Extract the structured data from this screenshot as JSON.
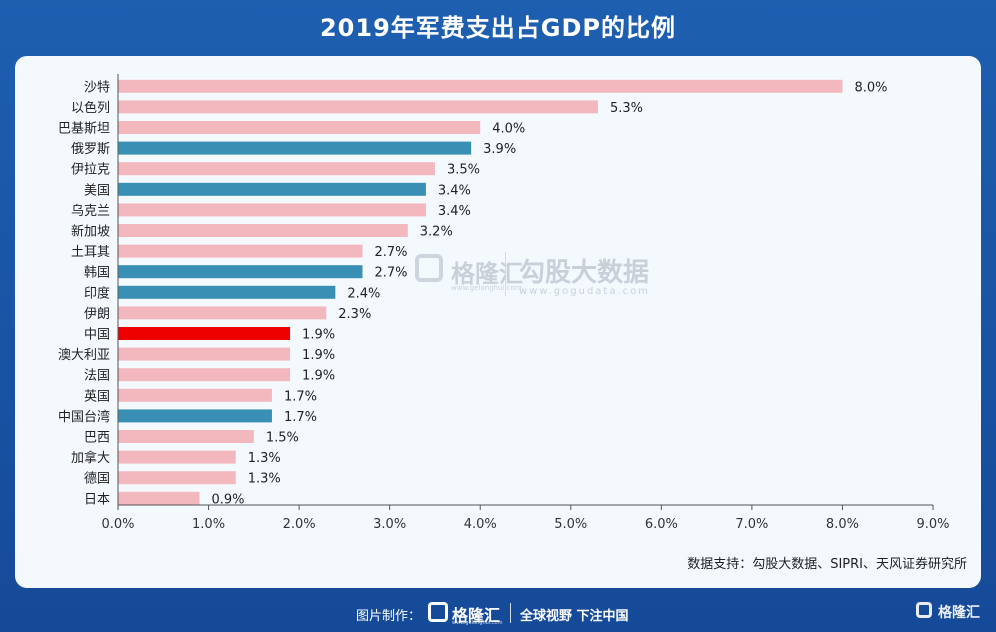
{
  "title": "2019年军费支出占GDP的比例",
  "source": "数据支持：勾股大数据、SIPRI、天风证券研究所",
  "watermark": {
    "brand1": "格隆汇",
    "brand1_sub": "www.gelonghui.com",
    "brand2": "勾股大数据",
    "brand2_sub": "www.gogudata.com"
  },
  "footer": {
    "made_by": "图片制作：",
    "brand": "格隆汇",
    "brand_sub": "www.gelonghui.com",
    "slogan": "全球视野 下注中国",
    "corner_brand": "格隆汇"
  },
  "colors": {
    "pink": "#f2b8be",
    "blue": "#3a8fb5",
    "red": "#ee0000"
  },
  "chart_data": {
    "type": "bar",
    "orientation": "horizontal",
    "title": "2019年军费支出占GDP的比例",
    "categories": [
      "沙特",
      "以色列",
      "巴基斯坦",
      "俄罗斯",
      "伊拉克",
      "美国",
      "乌克兰",
      "新加坡",
      "土耳其",
      "韩国",
      "印度",
      "伊朗",
      "中国",
      "澳大利亚",
      "法国",
      "英国",
      "中国台湾",
      "巴西",
      "加拿大",
      "德国",
      "日本"
    ],
    "values": [
      8.0,
      5.3,
      4.0,
      3.9,
      3.5,
      3.4,
      3.4,
      3.2,
      2.7,
      2.7,
      2.4,
      2.3,
      1.9,
      1.9,
      1.9,
      1.7,
      1.7,
      1.5,
      1.3,
      1.3,
      0.9
    ],
    "value_labels": [
      "8.0%",
      "5.3%",
      "4.0%",
      "3.9%",
      "3.5%",
      "3.4%",
      "3.4%",
      "3.2%",
      "2.7%",
      "2.7%",
      "2.4%",
      "2.3%",
      "1.9%",
      "1.9%",
      "1.9%",
      "1.7%",
      "1.7%",
      "1.5%",
      "1.3%",
      "1.3%",
      "0.9%"
    ],
    "bar_colors": [
      "pink",
      "pink",
      "pink",
      "blue",
      "pink",
      "blue",
      "pink",
      "pink",
      "pink",
      "blue",
      "blue",
      "pink",
      "red",
      "pink",
      "pink",
      "pink",
      "blue",
      "pink",
      "pink",
      "pink",
      "pink"
    ],
    "xlim": [
      0,
      9
    ],
    "xticks": [
      "0.0%",
      "1.0%",
      "2.0%",
      "3.0%",
      "4.0%",
      "5.0%",
      "6.0%",
      "7.0%",
      "8.0%",
      "9.0%"
    ],
    "grid": false,
    "legend": "none"
  }
}
